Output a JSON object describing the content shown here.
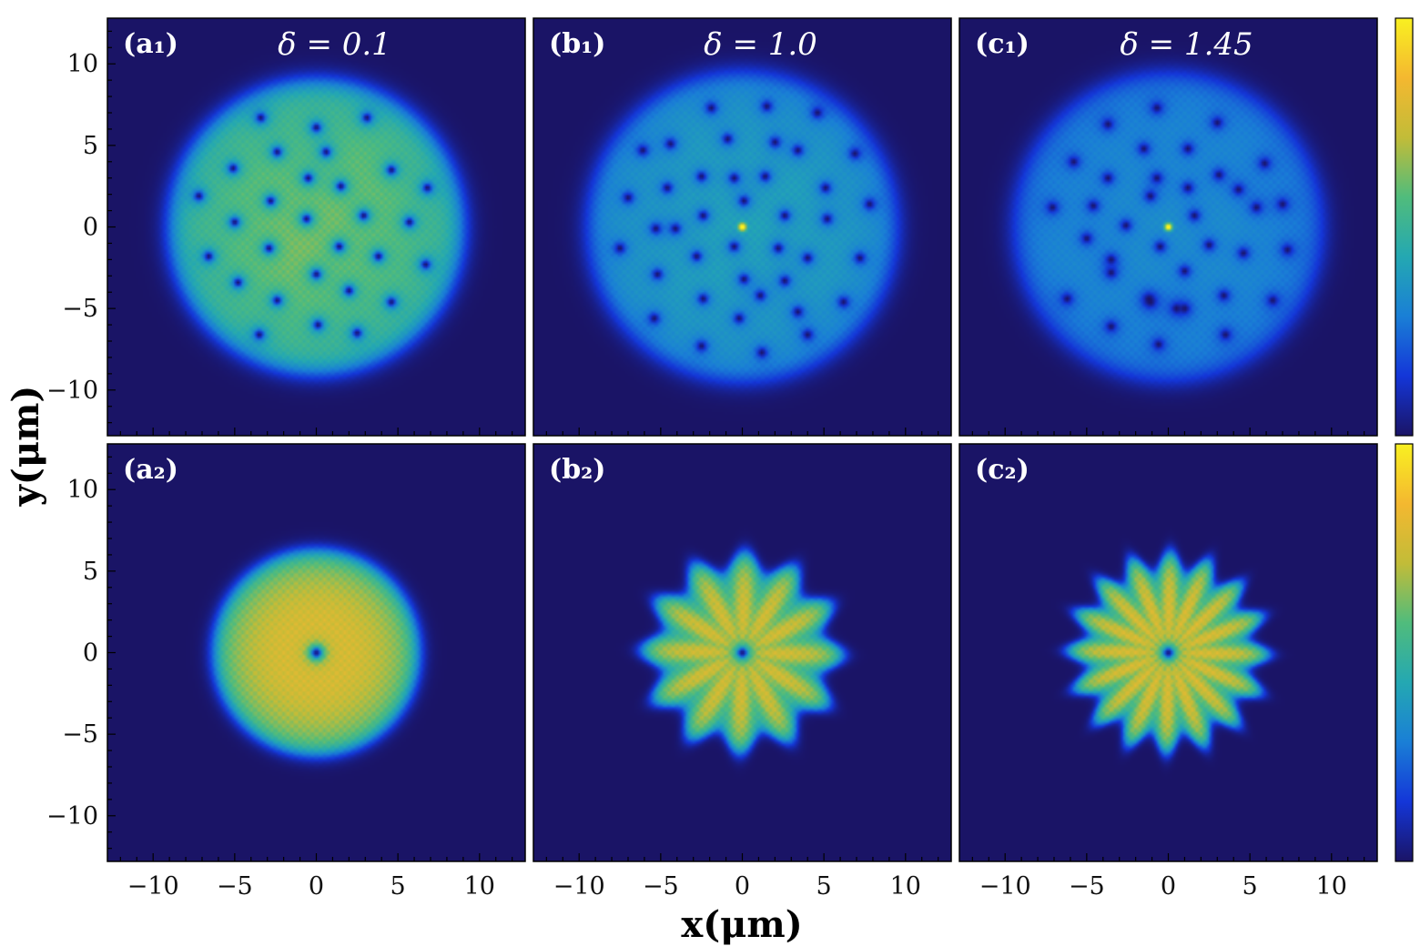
{
  "chart_data": {
    "type": "heatmap",
    "xlabel": "x(μm)",
    "ylabel": "y(μm)",
    "xlim": [
      -12.8,
      12.8
    ],
    "ylim": [
      -12.8,
      12.8
    ],
    "xticks": [
      -10,
      -5,
      0,
      5,
      10
    ],
    "yticks": [
      -10,
      -5,
      0,
      5,
      10
    ],
    "xtick_labels": [
      "−10",
      "−5",
      "0",
      "5",
      "10"
    ],
    "ytick_labels": [
      "−10",
      "−5",
      "0",
      "5",
      "10"
    ],
    "colormap": [
      "#1a1466",
      "#1436d8",
      "#1a7fd6",
      "#24a8b2",
      "#50bc7c",
      "#c2bc38",
      "#f4b830",
      "#f9f021"
    ],
    "background_color": "#1a1466",
    "panels": [
      {
        "label": "(a₁)",
        "title": "δ = 0.1",
        "row": 0,
        "col": 0,
        "radius": 9.0,
        "peak": 0.8,
        "center_peak": false,
        "center_hole": false,
        "edge_lumps": 0,
        "vortices": [
          [
            -3.4,
            6.7
          ],
          [
            0.0,
            6.1
          ],
          [
            3.1,
            6.7
          ],
          [
            -2.4,
            4.6
          ],
          [
            0.6,
            4.6
          ],
          [
            -5.1,
            3.6
          ],
          [
            -2.8,
            1.6
          ],
          [
            -0.5,
            3.0
          ],
          [
            1.5,
            2.5
          ],
          [
            4.6,
            3.5
          ],
          [
            -7.2,
            1.9
          ],
          [
            2.9,
            0.7
          ],
          [
            6.8,
            2.4
          ],
          [
            -5.0,
            0.3
          ],
          [
            -0.6,
            0.5
          ],
          [
            1.4,
            -1.2
          ],
          [
            5.7,
            0.3
          ],
          [
            -2.9,
            -1.3
          ],
          [
            0.0,
            -2.9
          ],
          [
            3.8,
            -1.8
          ],
          [
            -6.6,
            -1.8
          ],
          [
            2.0,
            -3.9
          ],
          [
            6.7,
            -2.3
          ],
          [
            -4.8,
            -3.4
          ],
          [
            -2.4,
            -4.5
          ],
          [
            4.6,
            -4.6
          ],
          [
            0.1,
            -6.0
          ],
          [
            -3.5,
            -6.6
          ],
          [
            2.5,
            -6.5
          ]
        ]
      },
      {
        "label": "(b₁)",
        "title": "δ = 1.0",
        "row": 0,
        "col": 1,
        "radius": 9.5,
        "peak": 0.55,
        "center_peak": true,
        "center_hole": false,
        "edge_lumps": 0,
        "vortices": [
          [
            -1.9,
            7.3
          ],
          [
            1.5,
            7.4
          ],
          [
            4.6,
            7.0
          ],
          [
            -4.4,
            5.1
          ],
          [
            -0.9,
            5.4
          ],
          [
            2.0,
            5.2
          ],
          [
            -6.1,
            4.7
          ],
          [
            3.4,
            4.7
          ],
          [
            6.9,
            4.5
          ],
          [
            -2.5,
            3.1
          ],
          [
            1.4,
            3.1
          ],
          [
            -4.6,
            2.4
          ],
          [
            -0.5,
            3.0
          ],
          [
            5.1,
            2.4
          ],
          [
            -7.0,
            1.8
          ],
          [
            -2.4,
            0.7
          ],
          [
            2.6,
            0.7
          ],
          [
            7.8,
            1.4
          ],
          [
            -5.3,
            -0.1
          ],
          [
            0.1,
            1.6
          ],
          [
            -4.1,
            -0.1
          ],
          [
            5.2,
            0.5
          ],
          [
            -0.5,
            -1.2
          ],
          [
            2.2,
            -1.3
          ],
          [
            -7.5,
            -1.3
          ],
          [
            -2.8,
            -1.8
          ],
          [
            4.0,
            -1.9
          ],
          [
            7.2,
            -1.9
          ],
          [
            -5.2,
            -2.9
          ],
          [
            0.1,
            -3.2
          ],
          [
            2.6,
            -3.3
          ],
          [
            -2.4,
            -4.4
          ],
          [
            1.1,
            -4.2
          ],
          [
            6.2,
            -4.6
          ],
          [
            -5.4,
            -5.6
          ],
          [
            -0.2,
            -5.6
          ],
          [
            3.4,
            -5.2
          ],
          [
            -2.5,
            -7.3
          ],
          [
            1.2,
            -7.7
          ],
          [
            4.0,
            -6.6
          ]
        ]
      },
      {
        "label": "(c₁)",
        "title": "δ = 1.45",
        "row": 0,
        "col": 2,
        "radius": 9.5,
        "peak": 0.45,
        "center_peak": true,
        "center_hole": false,
        "edge_lumps": 0,
        "vortices": [
          [
            -3.7,
            6.3
          ],
          [
            -0.7,
            7.3
          ],
          [
            3.0,
            6.4
          ],
          [
            -1.5,
            4.8
          ],
          [
            1.2,
            4.8
          ],
          [
            -5.8,
            4.0
          ],
          [
            3.1,
            3.2
          ],
          [
            5.9,
            3.9
          ],
          [
            -3.7,
            3.0
          ],
          [
            -0.7,
            3.0
          ],
          [
            -7.1,
            1.2
          ],
          [
            -4.6,
            1.3
          ],
          [
            1.2,
            2.4
          ],
          [
            4.3,
            2.3
          ],
          [
            -1.1,
            1.9
          ],
          [
            -2.6,
            0.1
          ],
          [
            1.6,
            0.7
          ],
          [
            5.4,
            1.2
          ],
          [
            7.0,
            1.4
          ],
          [
            -5.0,
            -0.7
          ],
          [
            -0.5,
            -1.2
          ],
          [
            2.5,
            -1.1
          ],
          [
            4.6,
            -1.6
          ],
          [
            7.3,
            -1.4
          ],
          [
            -3.5,
            -2.0
          ],
          [
            1.0,
            -2.7
          ],
          [
            -6.2,
            -4.4
          ],
          [
            -3.5,
            -2.8
          ],
          [
            -1.2,
            -4.4
          ],
          [
            1.0,
            -5.0
          ],
          [
            3.4,
            -4.2
          ],
          [
            6.4,
            -4.5
          ],
          [
            -3.5,
            -6.1
          ],
          [
            -0.6,
            -7.2
          ],
          [
            3.5,
            -6.6
          ],
          [
            -1.1,
            -4.6
          ],
          [
            0.5,
            -5.0
          ]
        ]
      },
      {
        "label": "(a₂)",
        "title": "",
        "row": 1,
        "col": 0,
        "radius": 6.3,
        "peak": 0.88,
        "center_peak": false,
        "center_hole": true,
        "edge_lumps": 0,
        "vortices": []
      },
      {
        "label": "(b₂)",
        "title": "",
        "row": 1,
        "col": 1,
        "radius": 5.6,
        "peak": 0.82,
        "center_peak": false,
        "center_hole": true,
        "edge_lumps": 12,
        "vortices": []
      },
      {
        "label": "(c₂)",
        "title": "",
        "row": 1,
        "col": 2,
        "radius": 5.6,
        "peak": 0.84,
        "center_peak": false,
        "center_hole": true,
        "edge_lumps": 16,
        "vortices": []
      }
    ]
  }
}
